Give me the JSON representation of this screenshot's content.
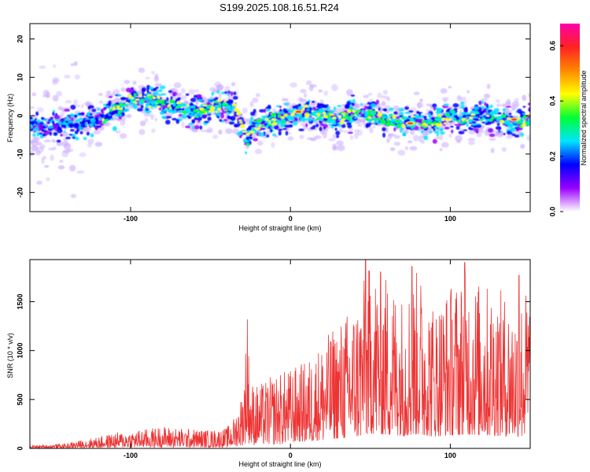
{
  "title": "S199.2025.108.16.51.R24",
  "colors": {
    "snr_line": "#ee3333",
    "colorbar_stops": [
      "#ffffff",
      "#9a00ff",
      "#0000ff",
      "#00e5ff",
      "#00ff33",
      "#ffff00",
      "#ff8800",
      "#ff2222",
      "#ff00aa"
    ]
  },
  "chart_data": [
    {
      "type": "heatmap",
      "xlabel": "Height of straight line (km)",
      "ylabel": "Frequency (Hz)",
      "xlim": [
        -163,
        150
      ],
      "ylim": [
        -25,
        24
      ],
      "x_ticks": [
        -100,
        0,
        100
      ],
      "x_tick_labels": [
        "-100",
        "0",
        "100"
      ],
      "y_ticks": [
        -20,
        -10,
        0,
        10,
        20
      ],
      "y_tick_labels": [
        "-20",
        "-10",
        "0",
        "10",
        "20"
      ],
      "ridge_x": [
        -163,
        -150,
        -140,
        -130,
        -120,
        -110,
        -100,
        -90,
        -80,
        -70,
        -60,
        -50,
        -40,
        -35,
        -30,
        -27,
        -25,
        -20,
        -10,
        0,
        10,
        20,
        30,
        40,
        50,
        60,
        70,
        80,
        90,
        100,
        110,
        120,
        130,
        140,
        150
      ],
      "ridge_freq": [
        -3,
        -3,
        -2,
        -2,
        -1,
        1,
        4,
        4,
        3,
        2,
        1,
        2,
        3,
        2,
        -3,
        -7,
        -4,
        -2,
        -1,
        0,
        1,
        0,
        -1,
        1,
        0,
        -1,
        -2,
        -1,
        -2,
        0,
        -1,
        0,
        -1,
        -2,
        -1
      ],
      "hotspots": [
        {
          "x": 75,
          "freq": -2
        },
        {
          "x": 140,
          "freq": -1
        },
        {
          "x": 5,
          "freq": 1
        }
      ],
      "colorbar": {
        "label": "Normalized spectral amplitude",
        "range": [
          0.0,
          0.68
        ],
        "ticks": [
          0.0,
          0.2,
          0.4,
          0.6
        ],
        "tick_labels": [
          "0.0",
          "0.2",
          "0.4",
          "0.6"
        ]
      }
    },
    {
      "type": "line",
      "xlabel": "Height of straight line (km)",
      "ylabel": "SNR (10 * v/v)",
      "xlim": [
        -163,
        150
      ],
      "ylim": [
        0,
        1930
      ],
      "x_ticks": [
        -100,
        0,
        100
      ],
      "x_tick_labels": [
        "-100",
        "0",
        "100"
      ],
      "y_ticks": [
        0,
        500,
        1000,
        1500
      ],
      "y_tick_labels": [
        "0",
        "500",
        "1000",
        "1500"
      ],
      "envelope_x": [
        -163,
        -140,
        -130,
        -120,
        -110,
        -100,
        -90,
        -80,
        -70,
        -60,
        -50,
        -40,
        -35,
        -30,
        -27,
        -25,
        -20,
        -10,
        0,
        10,
        20,
        30,
        40,
        50,
        60,
        70,
        80,
        90,
        100,
        110,
        120,
        130,
        140,
        150
      ],
      "envelope_snr": [
        30,
        50,
        90,
        120,
        160,
        180,
        200,
        230,
        210,
        200,
        190,
        210,
        330,
        600,
        1300,
        700,
        650,
        760,
        820,
        900,
        1100,
        1300,
        1500,
        1900,
        1800,
        1600,
        1850,
        1500,
        1700,
        1800,
        1700,
        1650,
        1500,
        1700
      ],
      "spikes": [
        {
          "x": -27,
          "snr": 1320
        },
        {
          "x": 47,
          "snr": 1930
        },
        {
          "x": 76,
          "snr": 1860
        },
        {
          "x": 109,
          "snr": 1900
        },
        {
          "x": 143,
          "snr": 1770
        }
      ]
    }
  ]
}
